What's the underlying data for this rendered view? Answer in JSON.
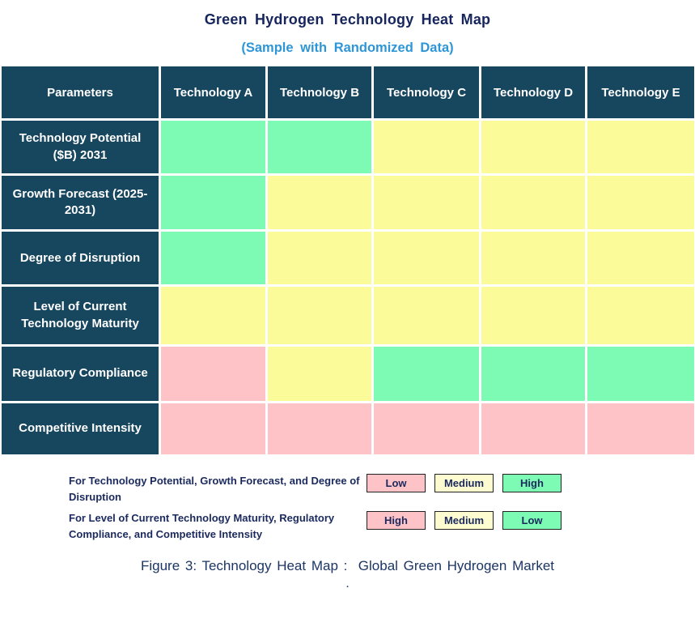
{
  "page": {
    "title": "Green Hydrogen Technology Heat Map",
    "subtitle": "(Sample with Randomized Data)",
    "caption": "Figure 3: Technology Heat Map :  Global Green Hydrogen Market",
    "footnote": "."
  },
  "colors": {
    "header_bg": "#17465F",
    "header_text": "#FFFFFF",
    "green": "#7DFBB4",
    "yellow": "#FCFB99",
    "pink": "#FDC3C6",
    "legend_medium_fill": "#FDFBD0",
    "title_navy": "#16265C",
    "subtitle_blue": "#2E96D6",
    "legend_text_navy": "#1B2A5E",
    "caption_navy": "#1C3564",
    "swatch_border": "#222222"
  },
  "chart_data": {
    "type": "heatmap",
    "title": "Green Hydrogen Technology Heat Map",
    "subtitle": "(Sample with Randomized Data)",
    "corner_label": "Parameters",
    "columns": [
      "Technology A",
      "Technology B",
      "Technology C",
      "Technology D",
      "Technology E"
    ],
    "rows": [
      {
        "parameter": "Technology Potential ($B) 2031",
        "cells": [
          {
            "color": "green",
            "level": "High"
          },
          {
            "color": "green",
            "level": "High"
          },
          {
            "color": "yellow",
            "level": "Medium"
          },
          {
            "color": "yellow",
            "level": "Medium"
          },
          {
            "color": "yellow",
            "level": "Medium"
          }
        ]
      },
      {
        "parameter": "Growth Forecast (2025-2031)",
        "cells": [
          {
            "color": "green",
            "level": "High"
          },
          {
            "color": "yellow",
            "level": "Medium"
          },
          {
            "color": "yellow",
            "level": "Medium"
          },
          {
            "color": "yellow",
            "level": "Medium"
          },
          {
            "color": "yellow",
            "level": "Medium"
          }
        ]
      },
      {
        "parameter": "Degree of Disruption",
        "cells": [
          {
            "color": "green",
            "level": "High"
          },
          {
            "color": "yellow",
            "level": "Medium"
          },
          {
            "color": "yellow",
            "level": "Medium"
          },
          {
            "color": "yellow",
            "level": "Medium"
          },
          {
            "color": "yellow",
            "level": "Medium"
          }
        ]
      },
      {
        "parameter": "Level of Current Technology Maturity",
        "cells": [
          {
            "color": "yellow",
            "level": "Medium"
          },
          {
            "color": "yellow",
            "level": "Medium"
          },
          {
            "color": "yellow",
            "level": "Medium"
          },
          {
            "color": "yellow",
            "level": "Medium"
          },
          {
            "color": "yellow",
            "level": "Medium"
          }
        ]
      },
      {
        "parameter": "Regulatory Compliance",
        "cells": [
          {
            "color": "pink",
            "level": "High"
          },
          {
            "color": "yellow",
            "level": "Medium"
          },
          {
            "color": "green",
            "level": "Low"
          },
          {
            "color": "green",
            "level": "Low"
          },
          {
            "color": "green",
            "level": "Low"
          }
        ]
      },
      {
        "parameter": "Competitive Intensity",
        "cells": [
          {
            "color": "pink",
            "level": "High"
          },
          {
            "color": "pink",
            "level": "High"
          },
          {
            "color": "pink",
            "level": "High"
          },
          {
            "color": "pink",
            "level": "High"
          },
          {
            "color": "pink",
            "level": "High"
          }
        ]
      }
    ],
    "legend": [
      {
        "applies_to": "For Technology Potential, Growth Forecast, and Degree of Disruption",
        "items": [
          {
            "label": "Low",
            "fill": "pink"
          },
          {
            "label": "Medium",
            "fill": "legend_medium_fill"
          },
          {
            "label": "High",
            "fill": "green"
          }
        ]
      },
      {
        "applies_to": "For Level of Current Technology Maturity, Regulatory Compliance, and Competitive Intensity",
        "items": [
          {
            "label": "High",
            "fill": "pink"
          },
          {
            "label": "Medium",
            "fill": "legend_medium_fill"
          },
          {
            "label": "Low",
            "fill": "green"
          }
        ]
      }
    ]
  }
}
